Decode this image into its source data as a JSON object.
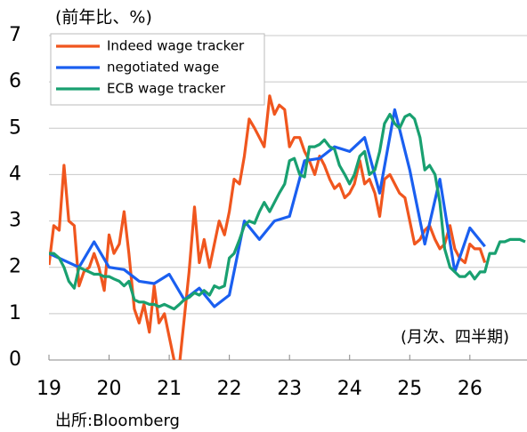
{
  "chart_data": {
    "type": "line",
    "ylabel": "(前年比、%)",
    "annotation": "(月次、四半期)",
    "source": "出所:Bloomberg",
    "xlim": [
      19,
      26.95
    ],
    "xticks": [
      19,
      20,
      21,
      22,
      23,
      24,
      25,
      26
    ],
    "ylim": [
      0,
      7
    ],
    "yticks": [
      0,
      1,
      2,
      3,
      4,
      5,
      6,
      7
    ],
    "grid": true,
    "legend": "upper left",
    "series": [
      {
        "name": "Indeed wage tracker",
        "color": "#f0561e",
        "x": [
          19.0,
          19.08,
          19.17,
          19.25,
          19.33,
          19.42,
          19.5,
          19.58,
          19.67,
          19.75,
          19.83,
          19.92,
          20.0,
          20.08,
          20.17,
          20.25,
          20.33,
          20.42,
          20.5,
          20.58,
          20.67,
          20.75,
          20.83,
          20.92,
          21.0,
          21.08,
          21.17,
          21.25,
          21.33,
          21.42,
          21.5,
          21.58,
          21.67,
          21.75,
          21.83,
          21.92,
          22.0,
          22.08,
          22.17,
          22.25,
          22.33,
          22.42,
          22.5,
          22.58,
          22.67,
          22.75,
          22.83,
          22.92,
          23.0,
          23.08,
          23.17,
          23.25,
          23.33,
          23.42,
          23.5,
          23.58,
          23.67,
          23.75,
          23.83,
          23.92,
          24.0,
          24.08,
          24.17,
          24.25,
          24.33,
          24.42,
          24.5,
          24.58,
          24.67,
          24.75,
          24.83,
          24.92,
          25.0,
          25.08,
          25.17,
          25.25,
          25.33,
          25.42,
          25.5,
          25.58,
          25.67,
          25.75,
          25.83,
          25.92,
          26.0,
          26.08,
          26.17,
          26.25
        ],
        "values": [
          2.05,
          2.9,
          2.8,
          4.2,
          3.0,
          2.9,
          1.6,
          1.9,
          2.0,
          2.3,
          2.0,
          1.5,
          2.7,
          2.3,
          2.5,
          3.2,
          2.3,
          1.1,
          0.8,
          1.2,
          0.6,
          1.6,
          0.8,
          1.0,
          0.5,
          0.0,
          -0.1,
          0.9,
          1.9,
          3.3,
          2.1,
          2.6,
          2.0,
          2.5,
          3.0,
          2.7,
          3.2,
          3.9,
          3.8,
          4.4,
          5.2,
          5.0,
          4.8,
          4.6,
          5.7,
          5.3,
          5.5,
          5.4,
          4.6,
          4.8,
          4.8,
          4.5,
          4.3,
          4.0,
          4.4,
          4.2,
          3.9,
          3.7,
          3.8,
          3.5,
          3.6,
          3.8,
          4.3,
          3.8,
          3.9,
          3.6,
          3.1,
          3.9,
          4.0,
          3.8,
          3.6,
          3.5,
          3.0,
          2.5,
          2.6,
          2.8,
          2.9,
          2.6,
          2.4,
          2.5,
          2.9,
          2.4,
          2.2,
          2.1,
          2.5,
          2.4,
          2.4,
          2.1
        ]
      },
      {
        "name": "negotiated wage",
        "color": "#1a5ff0",
        "x": [
          19.0,
          19.25,
          19.5,
          19.75,
          20.0,
          20.25,
          20.5,
          20.75,
          21.0,
          21.25,
          21.5,
          21.75,
          22.0,
          22.25,
          22.5,
          22.75,
          23.0,
          23.25,
          23.5,
          23.75,
          24.0,
          24.25,
          24.5,
          24.75,
          25.0,
          25.25,
          25.5,
          25.75,
          26.0,
          26.25
        ],
        "values": [
          2.3,
          2.15,
          2.0,
          2.55,
          2.0,
          1.95,
          1.7,
          1.65,
          1.85,
          1.3,
          1.55,
          1.15,
          1.4,
          3.0,
          2.6,
          3.0,
          3.1,
          4.3,
          4.35,
          4.6,
          4.5,
          4.8,
          3.6,
          5.4,
          4.1,
          2.5,
          3.9,
          1.9,
          2.85,
          2.45
        ]
      },
      {
        "name": "ECB wage tracker",
        "color": "#19a070",
        "x": [
          19.0,
          19.08,
          19.17,
          19.25,
          19.33,
          19.42,
          19.5,
          19.58,
          19.67,
          19.75,
          19.83,
          19.92,
          20.0,
          20.08,
          20.17,
          20.25,
          20.33,
          20.42,
          20.5,
          20.58,
          20.67,
          20.75,
          20.83,
          20.92,
          21.0,
          21.08,
          21.17,
          21.25,
          21.33,
          21.42,
          21.5,
          21.58,
          21.67,
          21.75,
          21.83,
          21.92,
          22.0,
          22.08,
          22.17,
          22.25,
          22.33,
          22.42,
          22.5,
          22.58,
          22.67,
          22.75,
          22.83,
          22.92,
          23.0,
          23.08,
          23.17,
          23.25,
          23.33,
          23.42,
          23.5,
          23.58,
          23.67,
          23.75,
          23.83,
          23.92,
          24.0,
          24.08,
          24.17,
          24.25,
          24.33,
          24.42,
          24.5,
          24.58,
          24.67,
          24.75,
          24.83,
          24.92,
          25.0,
          25.08,
          25.17,
          25.25,
          25.33,
          25.42,
          25.5,
          25.58,
          25.67,
          25.75,
          25.83,
          25.92,
          26.0,
          26.08,
          26.17,
          26.25,
          26.33,
          26.42,
          26.5,
          26.58,
          26.67,
          26.75,
          26.83,
          26.92
        ],
        "values": [
          2.3,
          2.3,
          2.2,
          2.0,
          1.7,
          1.55,
          2.0,
          1.95,
          1.9,
          1.85,
          1.85,
          1.8,
          1.8,
          1.75,
          1.7,
          1.6,
          1.7,
          1.3,
          1.25,
          1.25,
          1.2,
          1.2,
          1.15,
          1.2,
          1.15,
          1.1,
          1.2,
          1.3,
          1.35,
          1.45,
          1.4,
          1.5,
          1.4,
          1.6,
          1.55,
          1.6,
          2.2,
          2.3,
          2.6,
          2.9,
          3.0,
          2.95,
          3.2,
          3.4,
          3.2,
          3.4,
          3.6,
          3.8,
          4.3,
          4.35,
          4.0,
          3.95,
          4.6,
          4.6,
          4.65,
          4.75,
          4.6,
          4.55,
          4.2,
          4.0,
          3.8,
          4.0,
          4.4,
          4.5,
          4.0,
          4.1,
          4.5,
          5.1,
          5.3,
          5.1,
          5.0,
          5.25,
          5.3,
          5.2,
          4.8,
          4.1,
          4.2,
          4.0,
          3.4,
          2.4,
          2.0,
          1.9,
          1.8,
          1.8,
          1.9,
          1.75,
          1.9,
          1.9,
          2.3,
          2.3,
          2.55,
          2.55,
          2.6,
          2.6,
          2.6,
          2.55
        ]
      }
    ]
  }
}
